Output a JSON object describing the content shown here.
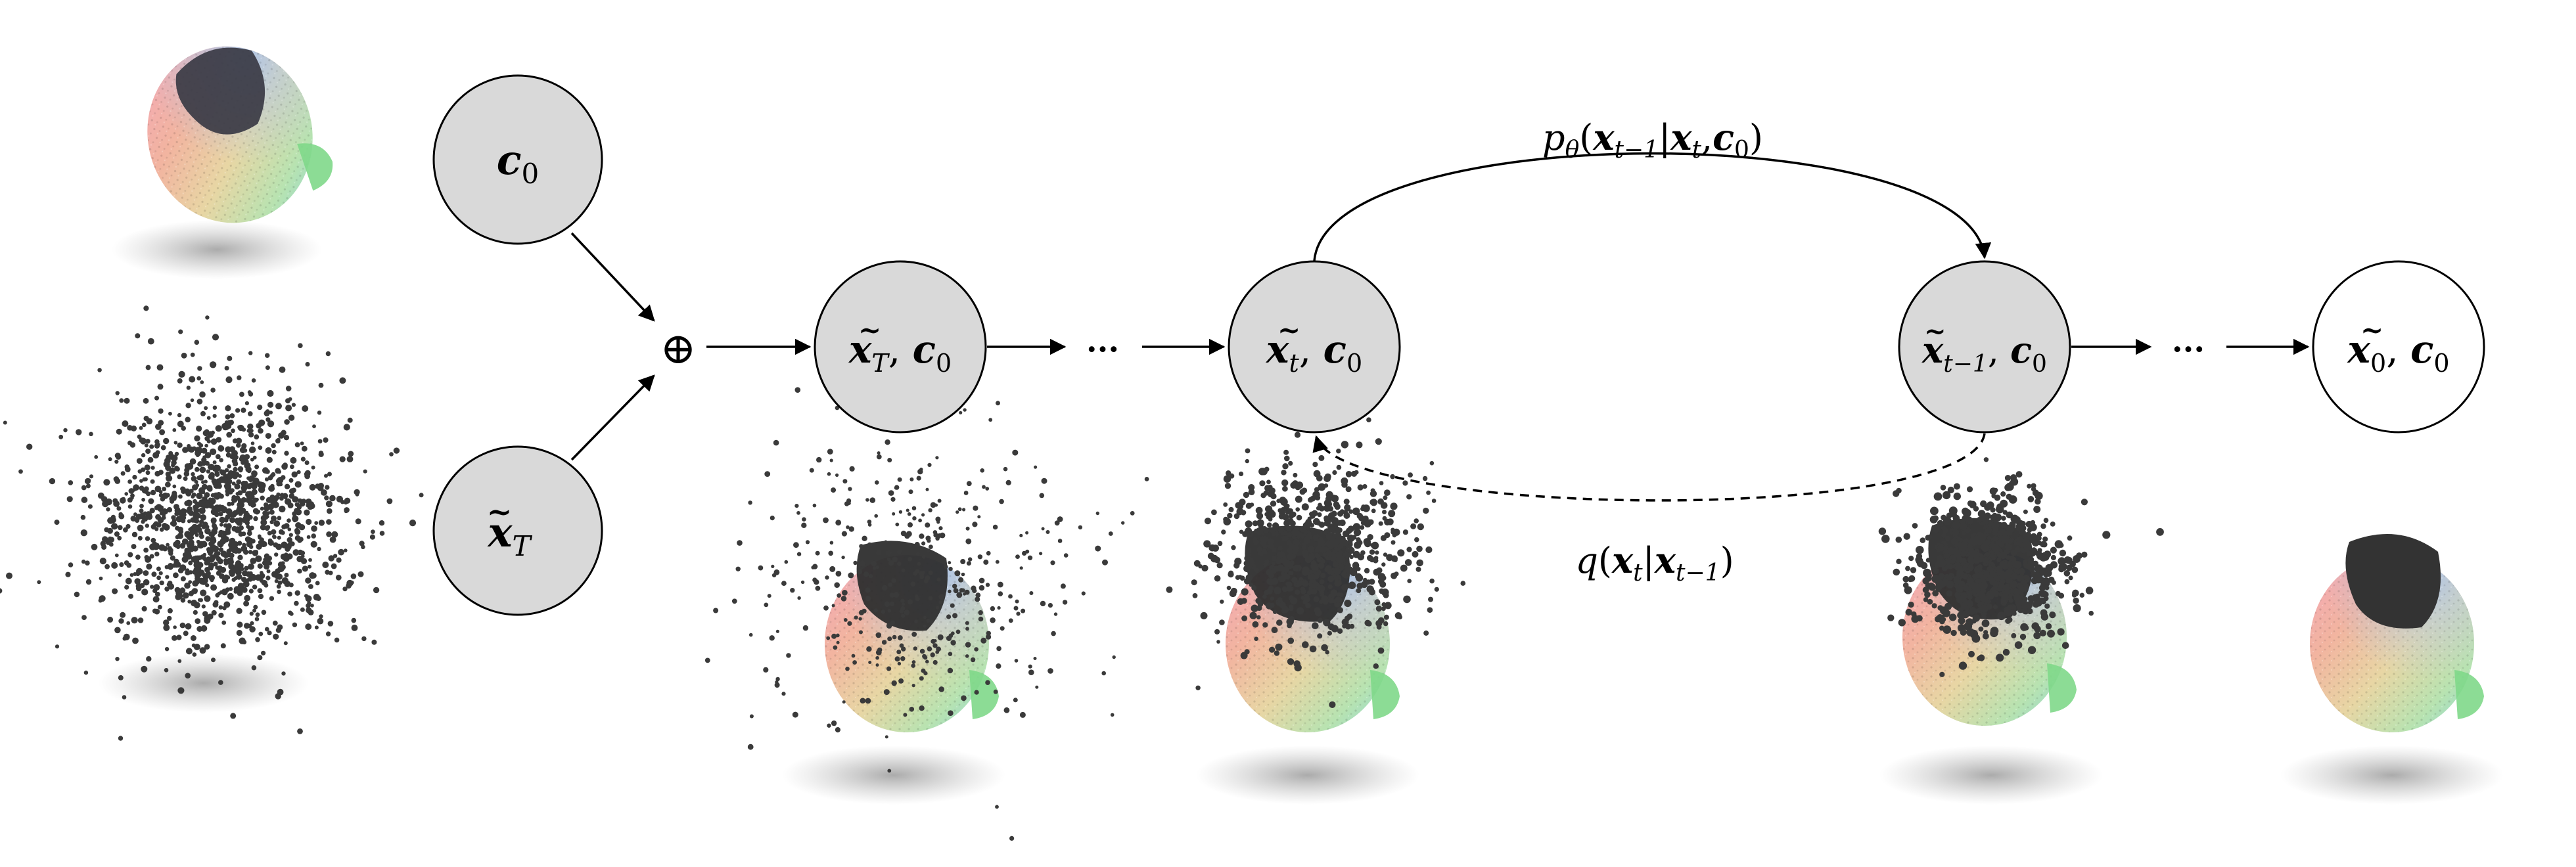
{
  "nodes": {
    "c0": {
      "base": "c",
      "sub": "0"
    },
    "xT": {
      "base": "x",
      "sub": "T"
    },
    "xT_c0": {
      "base": "x",
      "sub": "T",
      "extra_base": "c",
      "extra_sub": "0"
    },
    "xt_c0": {
      "base": "x",
      "sub": "t",
      "extra_base": "c",
      "extra_sub": "0"
    },
    "xt1_c0": {
      "base": "x",
      "sub": "t−1",
      "extra_base": "c",
      "extra_sub": "0"
    },
    "x0_c0": {
      "base": "x",
      "sub": "0",
      "extra_base": "c",
      "extra_sub": "0"
    }
  },
  "operators": {
    "concat": "⊕",
    "ellipsis": "···"
  },
  "labels": {
    "forward_fn": "p",
    "forward_fn_sub": "θ",
    "forward_open": "(",
    "forward_x": "x",
    "forward_x_sub": "t−1",
    "forward_bar": "|",
    "forward_x2": "x",
    "forward_x2_sub": "t",
    "forward_comma": ",",
    "forward_c": "c",
    "forward_c_sub": "0",
    "forward_close": ")",
    "reverse_fn": "q",
    "reverse_open": "(",
    "reverse_x": "x",
    "reverse_x_sub": "t",
    "reverse_bar": "|",
    "reverse_x2": "x",
    "reverse_x2_sub": "t−1",
    "reverse_close": ")"
  },
  "colors": {
    "node_fill_gray": "#d9d9d9",
    "node_fill_white": "#ffffff",
    "stroke": "#000000",
    "points_dark": "#3a3a3a"
  },
  "icons": {
    "skull_pointcloud": "skull-point-cloud-image",
    "noise_pointcloud": "gaussian-noise-point-cloud-image"
  }
}
